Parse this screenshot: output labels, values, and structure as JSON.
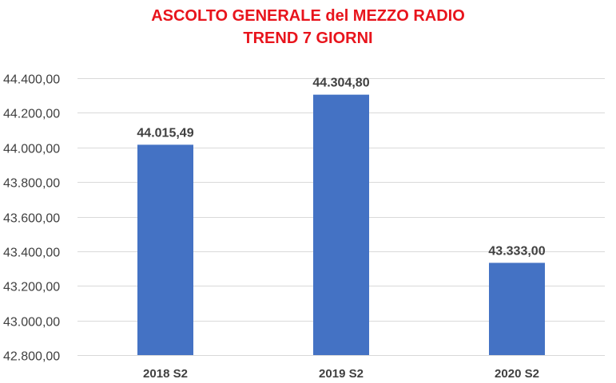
{
  "chart_data": {
    "type": "bar",
    "title": "ASCOLTO GENERALE del MEZZO RADIO",
    "subtitle": "TREND 7 GIORNI",
    "xlabel": "",
    "ylabel": "",
    "categories": [
      "2018 S2",
      "2019 S2",
      "2020 S2"
    ],
    "values": [
      44015.49,
      44304.8,
      43333.0
    ],
    "data_labels": [
      "44.015,49",
      "44.304,80",
      "43.333,00"
    ],
    "ylim": [
      42800,
      44400
    ],
    "yticks": [
      42800,
      43000,
      43200,
      43400,
      43600,
      43800,
      44000,
      44200,
      44400
    ],
    "ytick_labels": [
      "42.800,00",
      "43.000,00",
      "43.200,00",
      "43.400,00",
      "43.600,00",
      "43.800,00",
      "44.000,00",
      "44.200,00",
      "44.400,00"
    ],
    "grid": true,
    "legend": "none",
    "colors": {
      "bar": "#4472c4",
      "title": "#e8141c",
      "grid": "#d9d9d9",
      "text": "#404040"
    }
  }
}
